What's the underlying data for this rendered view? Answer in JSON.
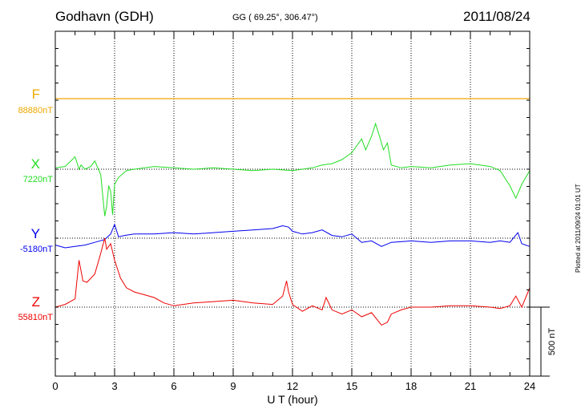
{
  "header": {
    "station": "Godhavn (GDH)",
    "coords": "GG ( 69.25°, 306.47°)",
    "date": "2011/08/24"
  },
  "footer": {
    "plotted_note": "Plotted at 2011/09/24 01:01 UT"
  },
  "colors": {
    "F": "#f0a800",
    "X": "#22dd22",
    "Y": "#0000ee",
    "Z": "#ee0000",
    "frame": "#000000"
  },
  "chart_data": {
    "type": "line",
    "title": "Godhavn (GDH)",
    "xlabel": "U T (hour)",
    "ylabel": "",
    "xlim": [
      0,
      24
    ],
    "x_ticks": [
      0,
      3,
      6,
      9,
      12,
      15,
      18,
      21,
      24
    ],
    "scale_bar": {
      "label": "500 nT",
      "value_nT": 500
    },
    "components": [
      {
        "name": "F",
        "baseline_label": "88880nT",
        "baseline": 88880,
        "x": [
          0,
          24
        ],
        "y": [
          88880,
          88880
        ]
      },
      {
        "name": "X",
        "baseline_label": "7220nT",
        "baseline": 7220,
        "x": [
          0,
          0.5,
          1.0,
          1.2,
          1.3,
          1.5,
          1.8,
          2.0,
          2.3,
          2.5,
          2.6,
          2.7,
          2.8,
          2.9,
          3.0,
          3.2,
          3.6,
          4,
          5,
          6,
          7,
          8,
          9,
          10,
          11,
          12,
          13,
          13.5,
          14,
          14.5,
          15,
          15.5,
          15.7,
          16,
          16.2,
          16.4,
          16.6,
          16.8,
          17,
          17.5,
          18,
          19,
          20,
          21,
          22,
          22.5,
          23,
          23.3,
          23.6,
          24
        ],
        "y": [
          7230,
          7240,
          7310,
          7220,
          7250,
          7220,
          7240,
          7280,
          7180,
          6880,
          6950,
          7100,
          7060,
          6890,
          7110,
          7160,
          7210,
          7220,
          7240,
          7230,
          7220,
          7230,
          7220,
          7210,
          7220,
          7210,
          7230,
          7250,
          7260,
          7290,
          7340,
          7440,
          7360,
          7460,
          7550,
          7460,
          7360,
          7410,
          7250,
          7230,
          7240,
          7230,
          7250,
          7260,
          7240,
          7210,
          7100,
          7010,
          7110,
          7210
        ]
      },
      {
        "name": "Y",
        "baseline_label": "-5180nT",
        "baseline": -5180,
        "x": [
          0,
          0.5,
          1.0,
          1.5,
          2.0,
          2.5,
          2.8,
          3.0,
          3.2,
          3.5,
          4,
          5,
          6,
          7,
          8,
          9,
          10,
          11,
          11.5,
          11.8,
          12,
          12.5,
          13,
          13.5,
          14,
          14.5,
          15,
          15.5,
          16,
          16.5,
          17,
          18,
          19,
          20,
          21,
          22,
          22.5,
          23,
          23.4,
          23.6,
          24
        ],
        "y": [
          -5230,
          -5250,
          -5240,
          -5230,
          -5210,
          -5190,
          -5150,
          -5080,
          -5170,
          -5160,
          -5150,
          -5150,
          -5140,
          -5150,
          -5140,
          -5130,
          -5120,
          -5110,
          -5090,
          -5100,
          -5130,
          -5150,
          -5140,
          -5120,
          -5160,
          -5170,
          -5150,
          -5210,
          -5200,
          -5240,
          -5210,
          -5200,
          -5210,
          -5200,
          -5200,
          -5210,
          -5200,
          -5210,
          -5140,
          -5220,
          -5240
        ]
      },
      {
        "name": "Z",
        "baseline_label": "55810nT",
        "baseline": 55810,
        "x": [
          0,
          0.5,
          1.0,
          1.2,
          1.4,
          1.6,
          2.0,
          2.3,
          2.5,
          2.6,
          2.8,
          3.0,
          3.3,
          3.6,
          4,
          4.5,
          5,
          5.5,
          6,
          7,
          8,
          9,
          10,
          11,
          11.5,
          11.7,
          11.8,
          12,
          12.5,
          13,
          13.5,
          13.7,
          14,
          14.5,
          15,
          15.5,
          16,
          16.5,
          16.8,
          17,
          17.5,
          18,
          19,
          20,
          21,
          22,
          22.5,
          23,
          23.3,
          23.6,
          24
        ],
        "y": [
          55810,
          55830,
          55870,
          56150,
          56000,
          55990,
          56050,
          56200,
          56310,
          56230,
          56270,
          56150,
          56020,
          55950,
          55920,
          55900,
          55880,
          55840,
          55820,
          55840,
          55850,
          55860,
          55840,
          55830,
          55890,
          56000,
          55920,
          55830,
          55780,
          55820,
          55790,
          55880,
          55790,
          55760,
          55790,
          55740,
          55770,
          55680,
          55700,
          55760,
          55790,
          55810,
          55810,
          55820,
          55820,
          55810,
          55800,
          55820,
          55890,
          55810,
          55950
        ]
      }
    ]
  }
}
